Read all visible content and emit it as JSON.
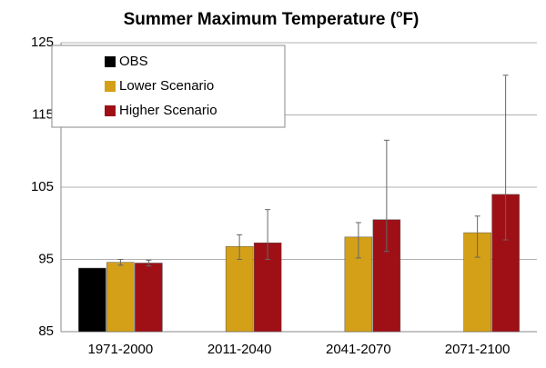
{
  "chart_data": {
    "type": "bar",
    "title": [
      "Summer Maximum Temperature (",
      "o",
      "F)"
    ],
    "categories": [
      "1971-2000",
      "2011-2040",
      "2041-2070",
      "2071-2100"
    ],
    "series": [
      {
        "name": "OBS",
        "color": "#000000",
        "values": [
          93.8,
          null,
          null,
          null
        ]
      },
      {
        "name": "Lower Scenario",
        "color": "#d4a017",
        "values": [
          94.6,
          96.8,
          98.1,
          98.7
        ],
        "errors": [
          [
            0.4,
            0.4
          ],
          [
            1.8,
            1.6
          ],
          [
            2.9,
            2.0
          ],
          [
            3.4,
            2.3
          ]
        ]
      },
      {
        "name": "Higher Scenario",
        "color": "#9e1016",
        "values": [
          94.5,
          97.3,
          100.5,
          104.0
        ],
        "errors": [
          [
            0.4,
            0.4
          ],
          [
            2.3,
            4.6
          ],
          [
            4.4,
            11.0
          ],
          [
            6.3,
            16.5
          ]
        ]
      }
    ],
    "ylim": [
      85,
      125
    ],
    "yticks": [
      85,
      95,
      105,
      115,
      125
    ],
    "grid": true,
    "legend": "top-left"
  }
}
